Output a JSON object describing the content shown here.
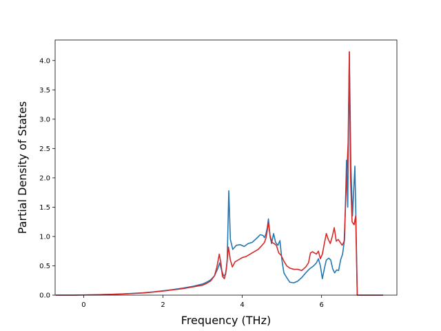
{
  "chart_data": {
    "type": "line",
    "title": "",
    "xlabel": "Frequency (THz)",
    "ylabel": "Partial Density of States",
    "xlim": [
      -0.72,
      7.9
    ],
    "ylim": [
      0,
      4.35
    ],
    "xticks": [
      0,
      2,
      4,
      6
    ],
    "yticks": [
      0.0,
      0.5,
      1.0,
      1.5,
      2.0,
      2.5,
      3.0,
      3.5,
      4.0
    ],
    "xtick_labels": [
      "0",
      "2",
      "4",
      "6"
    ],
    "ytick_labels": [
      "0.0",
      "0.5",
      "1.0",
      "1.5",
      "2.0",
      "2.5",
      "3.0",
      "3.5",
      "4.0"
    ],
    "grid": false,
    "series": [
      {
        "color": "#1f77b4",
        "points": [
          [
            -0.7,
            0.0
          ],
          [
            -0.5,
            0.0
          ],
          [
            -0.25,
            0.0
          ],
          [
            0.0,
            0.003
          ],
          [
            0.25,
            0.006
          ],
          [
            0.5,
            0.01
          ],
          [
            0.75,
            0.016
          ],
          [
            1.0,
            0.022
          ],
          [
            1.25,
            0.03
          ],
          [
            1.5,
            0.04
          ],
          [
            1.75,
            0.055
          ],
          [
            2.0,
            0.075
          ],
          [
            2.25,
            0.095
          ],
          [
            2.5,
            0.12
          ],
          [
            2.75,
            0.15
          ],
          [
            3.0,
            0.19
          ],
          [
            3.1,
            0.22
          ],
          [
            3.2,
            0.26
          ],
          [
            3.3,
            0.33
          ],
          [
            3.38,
            0.45
          ],
          [
            3.43,
            0.55
          ],
          [
            3.48,
            0.42
          ],
          [
            3.53,
            0.33
          ],
          [
            3.58,
            0.35
          ],
          [
            3.62,
            0.6
          ],
          [
            3.66,
            1.78
          ],
          [
            3.7,
            0.95
          ],
          [
            3.76,
            0.78
          ],
          [
            3.85,
            0.85
          ],
          [
            3.95,
            0.86
          ],
          [
            4.05,
            0.83
          ],
          [
            4.15,
            0.88
          ],
          [
            4.25,
            0.9
          ],
          [
            4.3,
            0.93
          ],
          [
            4.38,
            0.98
          ],
          [
            4.45,
            1.03
          ],
          [
            4.52,
            1.02
          ],
          [
            4.56,
            0.98
          ],
          [
            4.6,
            1.05
          ],
          [
            4.63,
            1.15
          ],
          [
            4.66,
            1.3
          ],
          [
            4.7,
            1.0
          ],
          [
            4.74,
            0.88
          ],
          [
            4.79,
            1.05
          ],
          [
            4.84,
            0.9
          ],
          [
            4.9,
            0.85
          ],
          [
            4.95,
            0.93
          ],
          [
            5.0,
            0.6
          ],
          [
            5.05,
            0.38
          ],
          [
            5.12,
            0.3
          ],
          [
            5.2,
            0.22
          ],
          [
            5.3,
            0.21
          ],
          [
            5.4,
            0.24
          ],
          [
            5.5,
            0.3
          ],
          [
            5.6,
            0.38
          ],
          [
            5.7,
            0.45
          ],
          [
            5.8,
            0.5
          ],
          [
            5.87,
            0.55
          ],
          [
            5.92,
            0.62
          ],
          [
            5.97,
            0.5
          ],
          [
            6.02,
            0.28
          ],
          [
            6.07,
            0.45
          ],
          [
            6.12,
            0.6
          ],
          [
            6.18,
            0.63
          ],
          [
            6.23,
            0.6
          ],
          [
            6.28,
            0.45
          ],
          [
            6.33,
            0.38
          ],
          [
            6.38,
            0.43
          ],
          [
            6.43,
            0.42
          ],
          [
            6.48,
            0.6
          ],
          [
            6.53,
            0.7
          ],
          [
            6.58,
            0.95
          ],
          [
            6.63,
            2.3
          ],
          [
            6.66,
            1.5
          ],
          [
            6.7,
            4.15
          ],
          [
            6.74,
            2.2
          ],
          [
            6.78,
            1.35
          ],
          [
            6.84,
            2.2
          ],
          [
            6.87,
            1.2
          ],
          [
            6.9,
            0.0
          ],
          [
            7.0,
            0.0
          ],
          [
            7.25,
            0.0
          ],
          [
            7.5,
            0.0
          ],
          [
            7.55,
            0.0
          ]
        ]
      },
      {
        "color": "#d62728",
        "points": [
          [
            -0.7,
            0.0
          ],
          [
            -0.5,
            0.0
          ],
          [
            -0.25,
            0.0
          ],
          [
            0.0,
            0.003
          ],
          [
            0.25,
            0.005
          ],
          [
            0.5,
            0.009
          ],
          [
            0.75,
            0.014
          ],
          [
            1.0,
            0.02
          ],
          [
            1.25,
            0.028
          ],
          [
            1.5,
            0.038
          ],
          [
            1.75,
            0.052
          ],
          [
            2.0,
            0.07
          ],
          [
            2.25,
            0.09
          ],
          [
            2.5,
            0.11
          ],
          [
            2.75,
            0.14
          ],
          [
            3.0,
            0.17
          ],
          [
            3.1,
            0.2
          ],
          [
            3.2,
            0.24
          ],
          [
            3.3,
            0.33
          ],
          [
            3.36,
            0.48
          ],
          [
            3.42,
            0.7
          ],
          [
            3.46,
            0.55
          ],
          [
            3.5,
            0.32
          ],
          [
            3.55,
            0.28
          ],
          [
            3.6,
            0.45
          ],
          [
            3.65,
            0.82
          ],
          [
            3.7,
            0.6
          ],
          [
            3.75,
            0.48
          ],
          [
            3.82,
            0.57
          ],
          [
            3.9,
            0.6
          ],
          [
            4.0,
            0.64
          ],
          [
            4.1,
            0.66
          ],
          [
            4.2,
            0.7
          ],
          [
            4.3,
            0.74
          ],
          [
            4.4,
            0.78
          ],
          [
            4.5,
            0.85
          ],
          [
            4.56,
            0.9
          ],
          [
            4.6,
            0.98
          ],
          [
            4.63,
            1.1
          ],
          [
            4.66,
            1.25
          ],
          [
            4.7,
            1.02
          ],
          [
            4.75,
            0.9
          ],
          [
            4.8,
            0.88
          ],
          [
            4.86,
            0.85
          ],
          [
            4.92,
            0.72
          ],
          [
            4.98,
            0.68
          ],
          [
            5.05,
            0.58
          ],
          [
            5.12,
            0.5
          ],
          [
            5.2,
            0.46
          ],
          [
            5.3,
            0.44
          ],
          [
            5.4,
            0.44
          ],
          [
            5.5,
            0.42
          ],
          [
            5.6,
            0.48
          ],
          [
            5.67,
            0.55
          ],
          [
            5.72,
            0.72
          ],
          [
            5.77,
            0.74
          ],
          [
            5.82,
            0.72
          ],
          [
            5.87,
            0.7
          ],
          [
            5.92,
            0.75
          ],
          [
            5.97,
            0.62
          ],
          [
            6.02,
            0.7
          ],
          [
            6.07,
            0.88
          ],
          [
            6.12,
            1.05
          ],
          [
            6.17,
            0.95
          ],
          [
            6.22,
            0.88
          ],
          [
            6.27,
            1.0
          ],
          [
            6.32,
            1.15
          ],
          [
            6.37,
            0.92
          ],
          [
            6.42,
            0.95
          ],
          [
            6.47,
            0.9
          ],
          [
            6.52,
            0.85
          ],
          [
            6.57,
            0.92
          ],
          [
            6.62,
            1.8
          ],
          [
            6.67,
            2.6
          ],
          [
            6.7,
            4.15
          ],
          [
            6.73,
            2.0
          ],
          [
            6.77,
            1.25
          ],
          [
            6.82,
            1.2
          ],
          [
            6.86,
            1.35
          ],
          [
            6.9,
            0.0
          ],
          [
            7.0,
            0.0
          ],
          [
            7.25,
            0.0
          ],
          [
            7.5,
            0.0
          ],
          [
            7.55,
            0.0
          ]
        ]
      }
    ]
  }
}
